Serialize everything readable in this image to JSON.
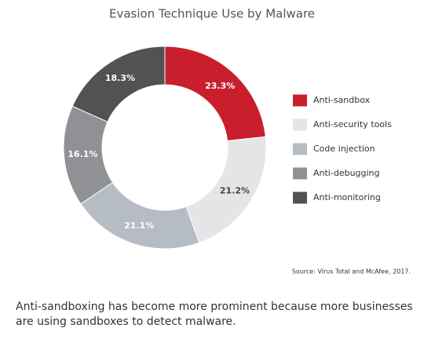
{
  "chart_data": {
    "type": "donut",
    "title": "Evasion Technique Use by Malware",
    "categories": [
      "Anti-sandbox",
      "Anti-security tools",
      "Code injection",
      "Anti-debugging",
      "Anti-monitoring"
    ],
    "values": [
      23.3,
      21.2,
      21.1,
      16.1,
      18.3
    ],
    "value_labels": [
      "23.3%",
      "21.2%",
      "21.1%",
      "16.1%",
      "18.3%"
    ],
    "colors": [
      "#c91f2c",
      "#e5e5e7",
      "#b5bcc3",
      "#8f9194",
      "#505254"
    ],
    "source": "Source: Virus Total and McAfee, 2017.",
    "caption": "Anti-sandboxing has become more prominent because more businesses are using sandboxes to detect malware."
  }
}
